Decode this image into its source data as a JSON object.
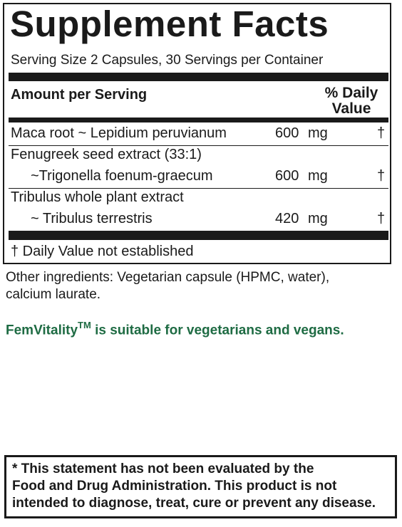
{
  "label": {
    "title": "Supplement Facts",
    "serving": "Serving Size 2 Capsules, 30 Servings per Container",
    "header_amount": "Amount per Serving",
    "header_dv_line1": "% Daily",
    "header_dv_line2": "Value",
    "rows": [
      {
        "name": "Maca root ~ Lepidium peruvianum",
        "amount": "600",
        "unit": "mg",
        "dv": "†"
      },
      {
        "name": "Fenugreek seed extract (33:1)",
        "sub": "~Trigonella foenum-graecum",
        "amount": "600",
        "unit": "mg",
        "dv": "†"
      },
      {
        "name": "Tribulus whole plant extract",
        "sub": "~ Tribulus terrestris",
        "amount": "420",
        "unit": "mg",
        "dv": "†"
      }
    ],
    "footnote": "† Daily Value not established"
  },
  "other_ingredients_line1": "Other ingredients: Vegetarian capsule (HPMC, water),",
  "other_ingredients_line2": "calcium laurate.",
  "vegan_statement": {
    "brand": "FemVitality",
    "trademark": "TM",
    "text": " is suitable for vegetarians and vegans.",
    "color": "#1e6b43"
  },
  "disclaimer": {
    "line1": "* This statement has not been evaluated by the",
    "line2": "Food and Drug Administration. This product is not",
    "line3": "intended to diagnose, treat, cure or prevent any disease."
  }
}
